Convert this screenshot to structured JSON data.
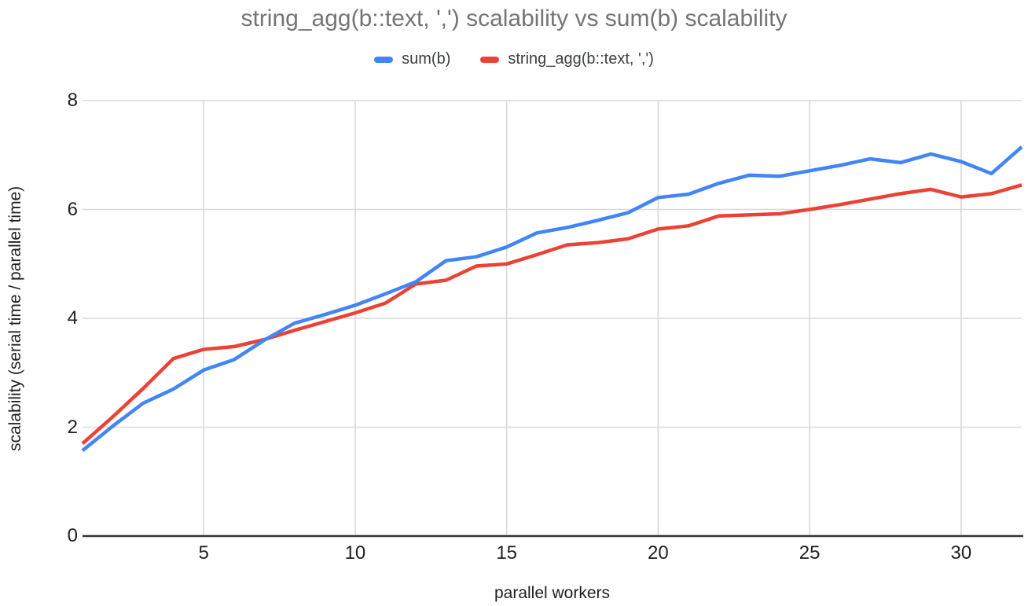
{
  "chart_data": {
    "type": "line",
    "title": "string_agg(b::text, ',') scalability vs sum(b) scalability",
    "xlabel": "parallel workers",
    "ylabel": "scalability (serial time / parallel time)",
    "x": [
      1,
      2,
      3,
      4,
      5,
      6,
      7,
      8,
      9,
      10,
      11,
      12,
      13,
      14,
      15,
      16,
      17,
      18,
      19,
      20,
      21,
      22,
      23,
      24,
      25,
      26,
      27,
      28,
      29,
      30,
      31,
      32
    ],
    "series": [
      {
        "name": "sum(b)",
        "color": "#4285f4",
        "values": [
          1.57,
          2.02,
          2.44,
          2.7,
          3.05,
          3.24,
          3.6,
          3.91,
          4.07,
          4.24,
          4.45,
          4.67,
          5.06,
          5.13,
          5.31,
          5.57,
          5.67,
          5.8,
          5.94,
          6.22,
          6.28,
          6.48,
          6.63,
          6.61,
          6.71,
          6.81,
          6.93,
          6.86,
          7.02,
          6.88,
          6.66,
          7.15
        ]
      },
      {
        "name": "string_agg(b::text, ',')",
        "color": "#ea4335",
        "values": [
          1.7,
          2.19,
          2.71,
          3.26,
          3.43,
          3.48,
          3.61,
          3.78,
          3.94,
          4.1,
          4.28,
          4.63,
          4.7,
          4.96,
          5.0,
          5.17,
          5.35,
          5.39,
          5.46,
          5.64,
          5.7,
          5.88,
          5.9,
          5.92,
          6.0,
          6.09,
          6.19,
          6.29,
          6.37,
          6.23,
          6.29,
          6.45
        ]
      }
    ],
    "xlim": [
      1,
      32
    ],
    "ylim": [
      0,
      8
    ],
    "xticks": [
      5,
      10,
      15,
      20,
      25,
      30
    ],
    "yticks": [
      0,
      2,
      4,
      6,
      8
    ],
    "grid": true,
    "legend_position": "top"
  },
  "colors": {
    "background": "#ffffff",
    "title_text": "#757575",
    "legend_text": "#3c4043",
    "tick_text": "#212121",
    "axis_title_text": "#212121",
    "gridline": "#d9d9d9",
    "axis_line": "#333333",
    "series_sum_b": "#4285f4",
    "series_string_agg": "#ea4335"
  }
}
